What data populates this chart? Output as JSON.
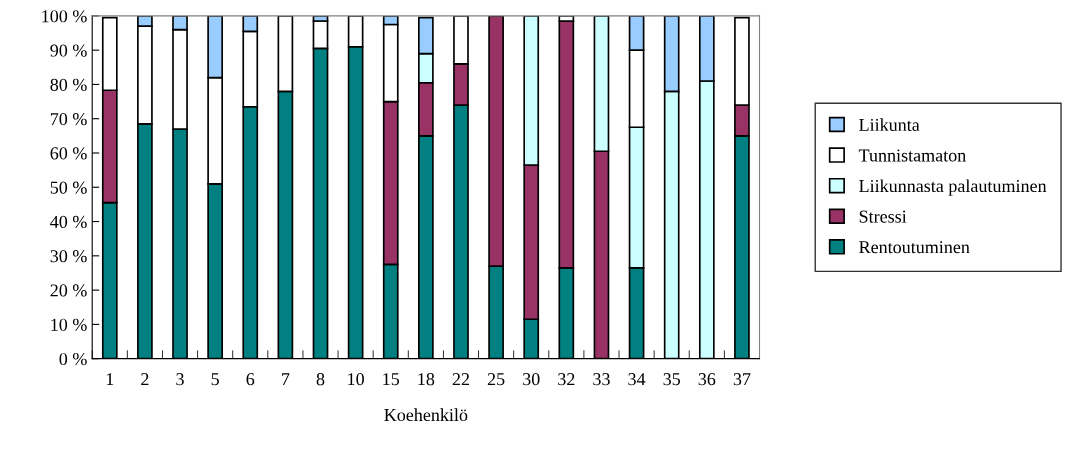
{
  "chart_data": {
    "type": "bar",
    "stacked": true,
    "xlabel": "Koehenkilö",
    "categories": [
      "1",
      "2",
      "3",
      "5",
      "6",
      "7",
      "8",
      "10",
      "15",
      "18",
      "22",
      "25",
      "30",
      "32",
      "33",
      "34",
      "35",
      "36",
      "37"
    ],
    "ylim": [
      0,
      100
    ],
    "yticks": [
      {
        "value": 0,
        "label": "0 %"
      },
      {
        "value": 10,
        "label": "10 %"
      },
      {
        "value": 20,
        "label": "20 %"
      },
      {
        "value": 30,
        "label": "30 %"
      },
      {
        "value": 40,
        "label": "40 %"
      },
      {
        "value": 50,
        "label": "50 %"
      },
      {
        "value": 60,
        "label": "60 %"
      },
      {
        "value": 70,
        "label": "70 %"
      },
      {
        "value": 80,
        "label": "80 %"
      },
      {
        "value": 90,
        "label": "90 %"
      },
      {
        "value": 100,
        "label": "100 %"
      }
    ],
    "grid": false,
    "legend": "right",
    "series": [
      {
        "name": "Rentoutuminen",
        "color": "#008080",
        "values": [
          45.5,
          68.5,
          67,
          51,
          73.5,
          78,
          90.5,
          91,
          27.5,
          65,
          74,
          27,
          11.5,
          26.5,
          0,
          26.5,
          0,
          0,
          65
        ]
      },
      {
        "name": "Stressi",
        "color": "#993366",
        "values": [
          32.8,
          0,
          0,
          0,
          0,
          0,
          0,
          0,
          47.5,
          15.5,
          12,
          73,
          45,
          72,
          60.5,
          0,
          0,
          0,
          9
        ]
      },
      {
        "name": "Liikunnasta palautuminen",
        "color": "#ccffff",
        "values": [
          0,
          0,
          0,
          0,
          0,
          0,
          0,
          0,
          0,
          8.5,
          0,
          0,
          43.5,
          0,
          39.5,
          41,
          78,
          81,
          0
        ]
      },
      {
        "name": "Tunnistamaton",
        "color": "#ffffff",
        "values": [
          21.2,
          28.5,
          29,
          31,
          22,
          22,
          8,
          9,
          22.5,
          null,
          14,
          0,
          0,
          1.5,
          0,
          22.5,
          0,
          0,
          25.5
        ]
      },
      {
        "name": "Liikunta",
        "color": "#99ccff",
        "values": [
          null,
          3,
          4,
          18,
          4.5,
          0,
          1.5,
          0,
          2.5,
          10.5,
          0,
          0,
          0,
          0,
          0,
          10,
          22,
          19,
          null
        ]
      }
    ]
  }
}
